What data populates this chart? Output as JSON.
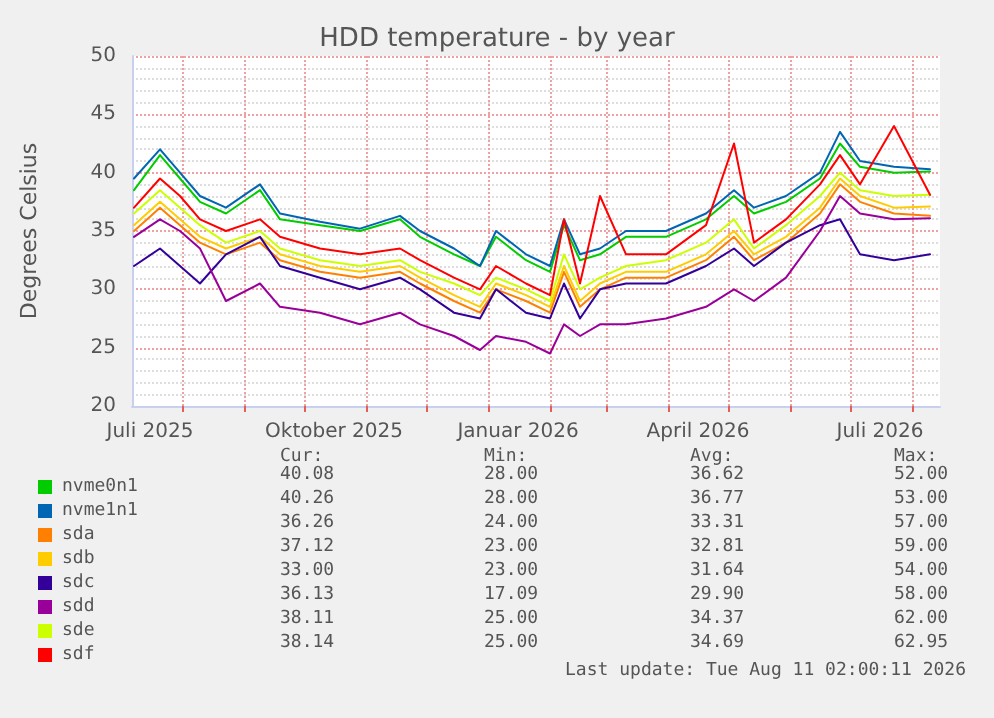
{
  "chart_data": {
    "type": "line",
    "title": "HDD temperature - by year",
    "ylabel": "Degrees Celsius",
    "x": [
      "2025-07-08",
      "2025-07-21",
      "2025-07-31",
      "2025-08-10",
      "2025-08-23",
      "2025-09-09",
      "2025-09-19",
      "2025-10-09",
      "2025-10-29",
      "2025-11-18",
      "2025-11-28",
      "2025-12-15",
      "2025-12-28",
      "2026-01-05",
      "2026-01-20",
      "2026-02-01",
      "2026-02-08",
      "2026-02-16",
      "2026-02-26",
      "2026-03-11",
      "2026-03-31",
      "2026-04-20",
      "2026-05-04",
      "2026-05-14",
      "2026-05-30",
      "2026-06-16",
      "2026-06-26",
      "2026-07-06",
      "2026-07-23",
      "2026-08-10"
    ],
    "series": [
      {
        "name": "nvme0n1",
        "color": "#00cc00",
        "values": [
          38.5,
          41.5,
          39.5,
          37.5,
          36.5,
          38.5,
          36,
          35.5,
          35,
          36,
          34.5,
          33,
          32,
          34.5,
          32.5,
          31.5,
          35.5,
          32.5,
          33,
          34.5,
          34.5,
          36,
          38,
          36.5,
          37.5,
          39.5,
          42.5,
          40.5,
          40,
          40.1
        ]
      },
      {
        "name": "nvme1n1",
        "color": "#0066b3",
        "values": [
          39.5,
          42,
          40,
          38,
          37,
          39,
          36.5,
          35.8,
          35.2,
          36.3,
          35,
          33.5,
          32,
          35,
          33,
          32,
          36,
          33,
          33.5,
          35,
          35,
          36.5,
          38.5,
          37,
          38,
          40,
          43.5,
          41,
          40.5,
          40.3
        ]
      },
      {
        "name": "sda",
        "color": "#ff8000",
        "values": [
          35,
          37,
          35.5,
          34,
          33,
          34,
          32.5,
          31.5,
          31,
          31.5,
          30.5,
          29,
          28,
          30,
          29,
          28,
          31.5,
          28.5,
          30,
          31,
          31,
          32.5,
          34.5,
          32.5,
          34,
          36.5,
          39,
          37.5,
          36.5,
          36.3
        ]
      },
      {
        "name": "sdb",
        "color": "#ffcc00",
        "values": [
          35.5,
          37.5,
          36,
          34.5,
          33.5,
          34.5,
          33,
          32,
          31.5,
          32,
          31,
          29.5,
          28.5,
          30.5,
          29.5,
          28.5,
          32,
          29,
          30.5,
          31.5,
          31.5,
          33,
          35,
          33,
          34.5,
          37,
          39.5,
          38,
          37,
          37.1
        ]
      },
      {
        "name": "sdc",
        "color": "#330099",
        "values": [
          32,
          33.5,
          32,
          30.5,
          33,
          34.5,
          32,
          31,
          30,
          31,
          30,
          28,
          27.5,
          30,
          28,
          27.5,
          30.5,
          27.5,
          30,
          30.5,
          30.5,
          32,
          33.5,
          32,
          34,
          35.5,
          36,
          33,
          32.5,
          33
        ]
      },
      {
        "name": "sdd",
        "color": "#990099",
        "values": [
          34.5,
          36,
          35,
          33.5,
          29,
          30.5,
          28.5,
          28,
          27,
          28,
          27,
          26,
          24.8,
          26,
          25.5,
          24.5,
          27,
          26,
          27,
          27,
          27.5,
          28.5,
          30,
          29,
          31,
          35,
          38,
          36.5,
          36,
          36.1
        ]
      },
      {
        "name": "sde",
        "color": "#ccff00",
        "values": [
          36.5,
          38.5,
          37,
          35.5,
          34,
          35,
          33.5,
          32.5,
          32,
          32.5,
          31.5,
          30.5,
          29.5,
          31,
          30,
          29,
          33,
          30,
          31,
          32,
          32.5,
          34,
          36,
          33.5,
          35.5,
          38,
          40,
          38.5,
          38,
          38.1
        ]
      },
      {
        "name": "sdf",
        "color": "#ff0000",
        "values": [
          37,
          39.5,
          38,
          36,
          35,
          36,
          34.5,
          33.5,
          33,
          33.5,
          32.5,
          31,
          30,
          32,
          30.5,
          29.5,
          36,
          30.5,
          38,
          33,
          33,
          35.5,
          42.5,
          34,
          36,
          39,
          41.5,
          39,
          44,
          38.1
        ]
      }
    ],
    "xlim": [
      "2025-07-07",
      "2026-08-15"
    ],
    "xticks": [
      {
        "value": "2025-08-01",
        "label": null
      },
      {
        "value": "2025-09-01",
        "label": null
      },
      {
        "value": "2025-10-01",
        "label": null
      },
      {
        "value": "2025-11-01",
        "label": null
      },
      {
        "value": "2025-12-01",
        "label": null
      },
      {
        "value": "2026-01-01",
        "label": null
      },
      {
        "value": "2026-02-01",
        "label": null
      },
      {
        "value": "2026-03-01",
        "label": null
      },
      {
        "value": "2026-04-01",
        "label": null
      },
      {
        "value": "2026-05-01",
        "label": null
      },
      {
        "value": "2026-06-01",
        "label": null
      },
      {
        "value": "2026-07-01",
        "label": null
      },
      {
        "value": "2026-08-01",
        "label": null
      },
      {
        "value": "2025-07-16",
        "label": "Juli 2025"
      },
      {
        "value": "2025-10-16",
        "label": "Oktober 2025"
      },
      {
        "value": "2026-01-16",
        "label": "Januar 2026"
      },
      {
        "value": "2026-04-16",
        "label": "April 2026"
      },
      {
        "value": "2026-07-16",
        "label": "Juli 2026"
      }
    ],
    "ylim": [
      20,
      50
    ],
    "yticks": [
      20,
      25,
      30,
      35,
      40,
      45,
      50
    ],
    "grid": true,
    "legend": "bottom left",
    "marker": "none",
    "line_style": "solid",
    "annotations": [
      "Cur:",
      "Min:",
      "Avg:",
      "Max:",
      "40.08",
      "28.00",
      "36.62",
      "52.00",
      "40.26",
      "28.00",
      "36.77",
      "53.00",
      "36.26",
      "24.00",
      "33.31",
      "57.00",
      "37.12",
      "23.00",
      "32.81",
      "59.00",
      "33.00",
      "23.00",
      "31.64",
      "54.00",
      "36.13",
      "17.09",
      "29.90",
      "58.00",
      "38.11",
      "25.00",
      "34.37",
      "62.00",
      "38.14",
      "25.00",
      "34.69",
      "62.95",
      "Last update: Tue Aug 11 02:00:11 2026"
    ]
  }
}
